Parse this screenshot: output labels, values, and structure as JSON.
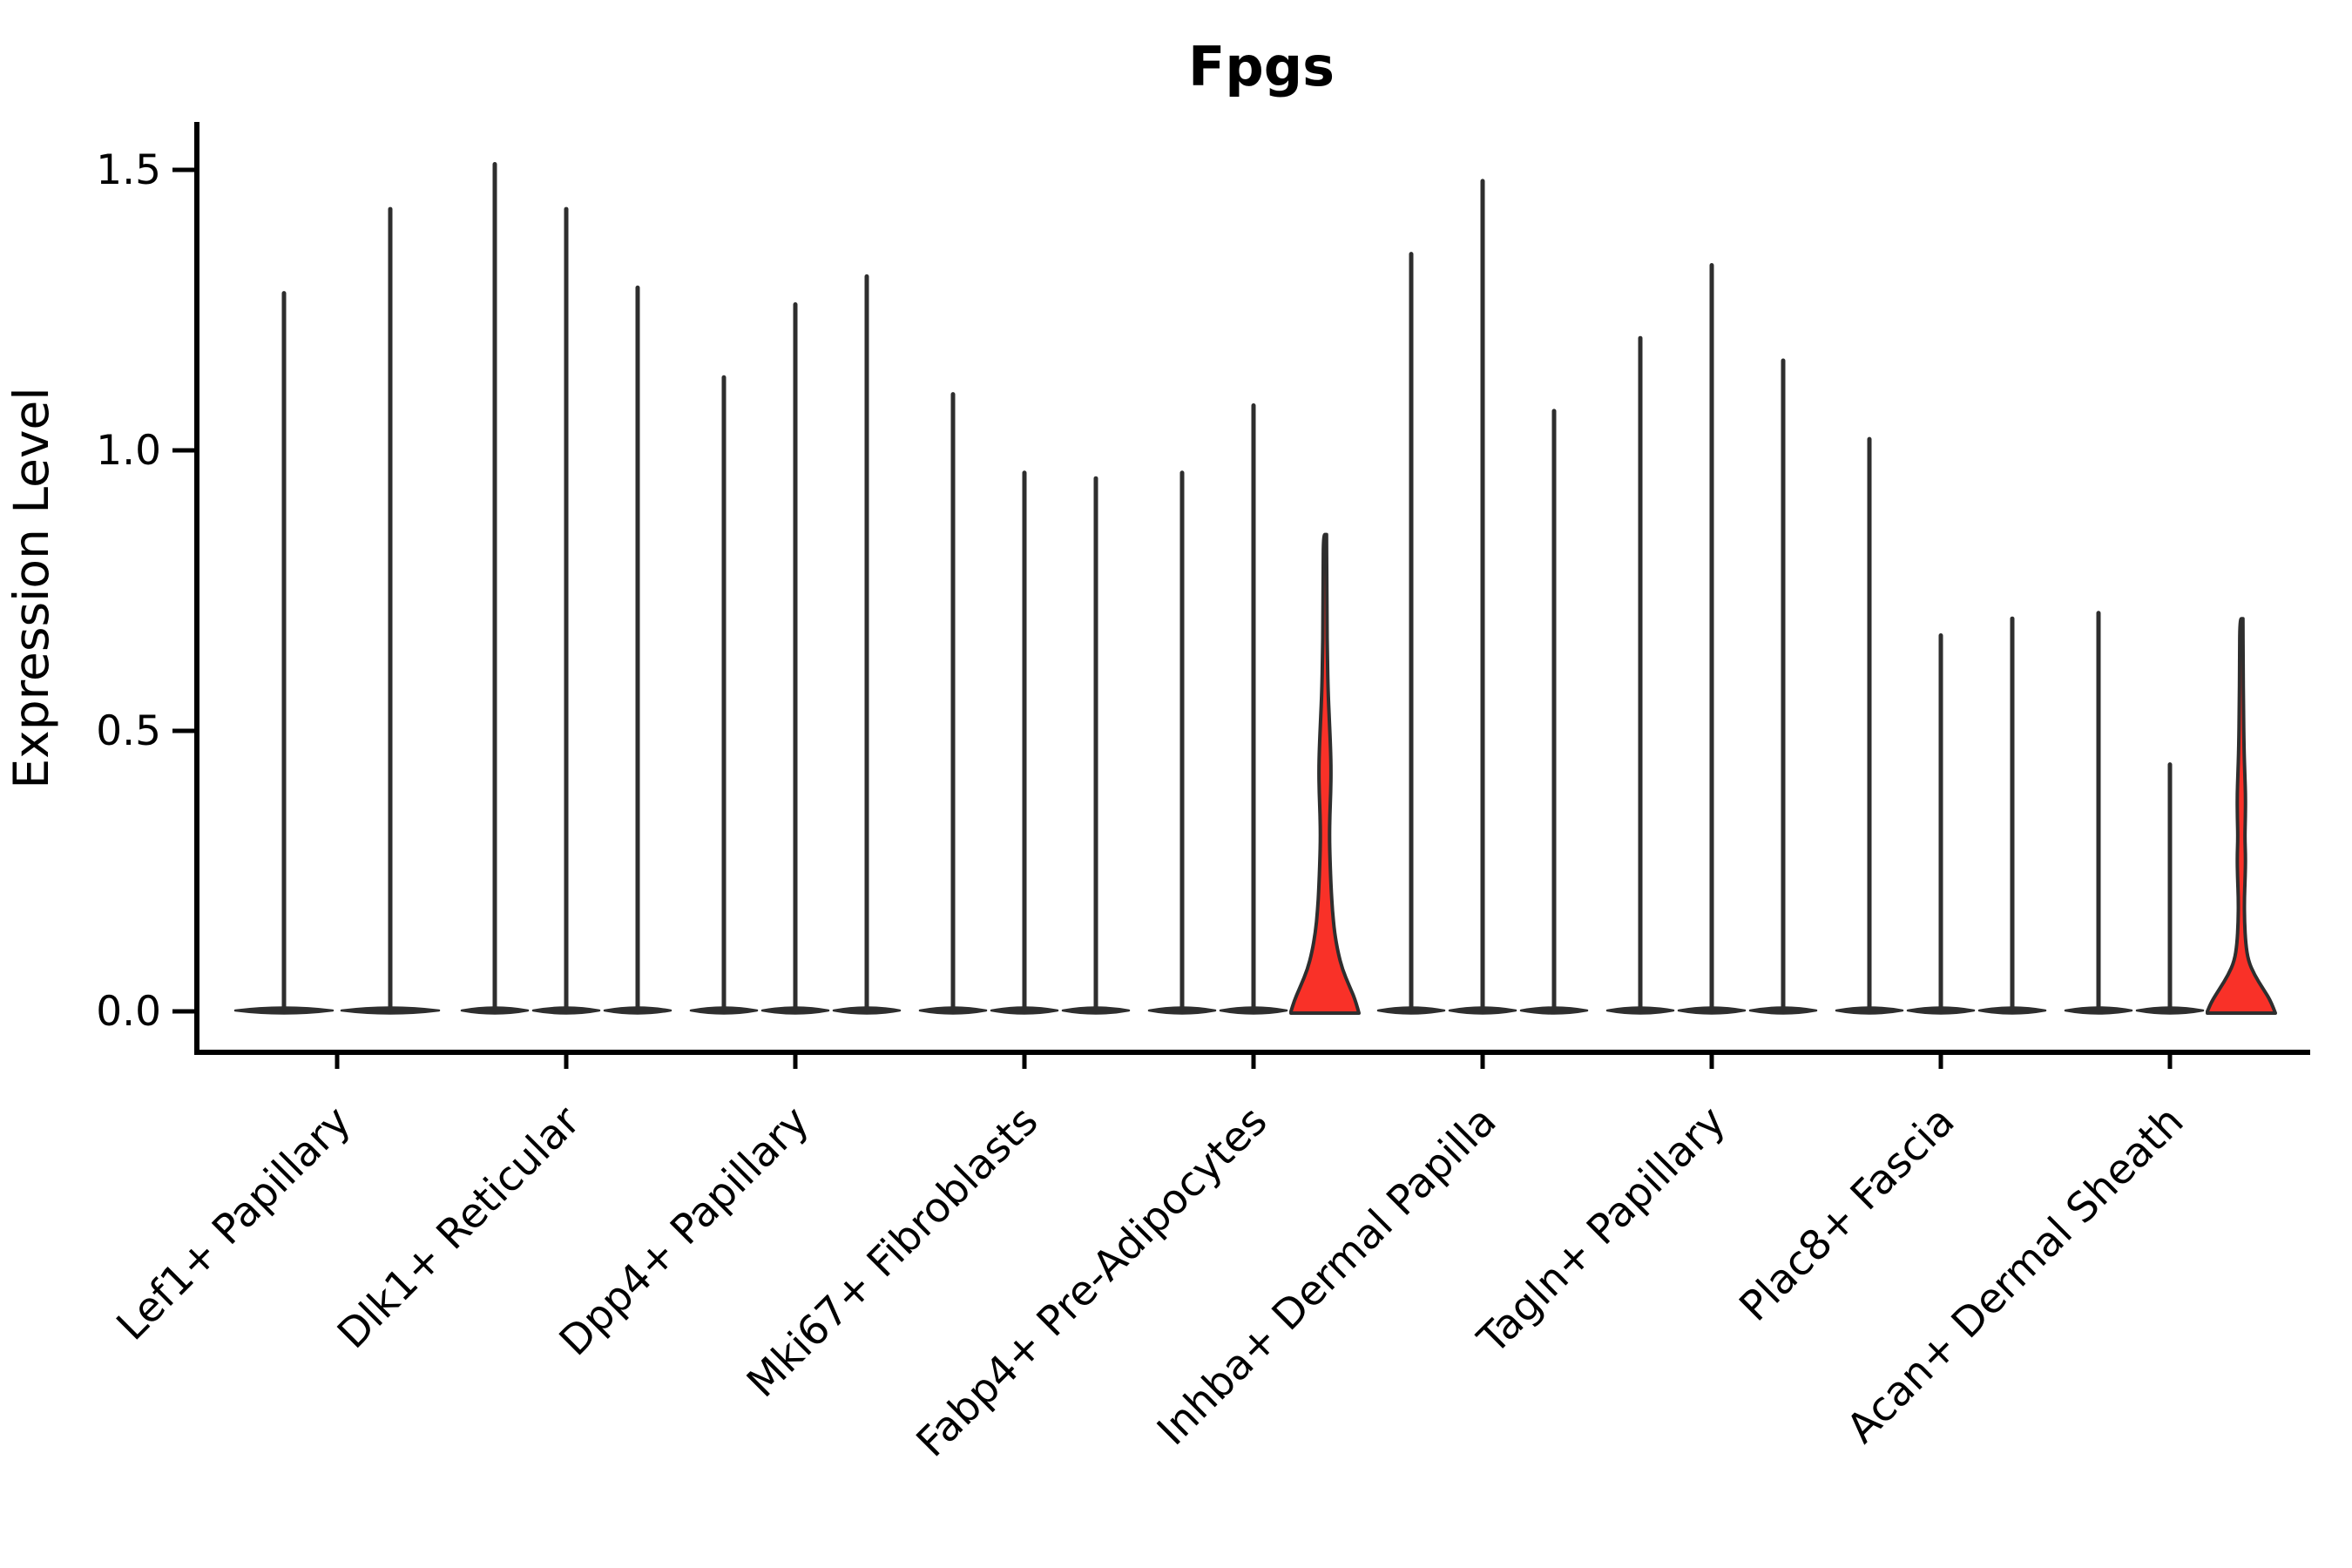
{
  "figure": {
    "title": "Fpgs",
    "ylabel": "Expression Level"
  },
  "chart_data": {
    "type": "violin",
    "title": "Fpgs",
    "xlabel": "",
    "ylabel": "Expression Level",
    "ylim": [
      -0.08,
      1.58
    ],
    "grid": false,
    "legend_position": "none",
    "background": "#ffffff",
    "axis_color": "#000000",
    "line_color": "#2e2e2e",
    "accent_color": "#f93128",
    "yticks": [
      {
        "label": "0.0",
        "value": 0.0
      },
      {
        "label": "0.5",
        "value": 0.5
      },
      {
        "label": "1.0",
        "value": 1.0
      },
      {
        "label": "1.5",
        "value": 1.5
      }
    ],
    "categories": [
      "Lef1+ Papillary",
      "Dlk1+ Reticular",
      "Dpp4+ Papillary",
      "Mki67+ Fibroblasts",
      "Fabp4+ Pre-Adipocytes",
      "Inhba+ Dermal Papilla",
      "Tagln+ Papillary",
      "Plac8+ Fascia",
      "Acan+ Dermal Sheath"
    ],
    "groups": [
      {
        "category": "Lef1+ Papillary",
        "violins": [
          {
            "max": 1.28,
            "filled": false
          },
          {
            "max": 1.43,
            "filled": false
          }
        ]
      },
      {
        "category": "Dlk1+ Reticular",
        "violins": [
          {
            "max": 1.51,
            "filled": false
          },
          {
            "max": 1.43,
            "filled": false
          },
          {
            "max": 1.29,
            "filled": false
          }
        ]
      },
      {
        "category": "Dpp4+ Papillary",
        "violins": [
          {
            "max": 1.13,
            "filled": false
          },
          {
            "max": 1.26,
            "filled": false
          },
          {
            "max": 1.31,
            "filled": false
          }
        ]
      },
      {
        "category": "Mki67+ Fibroblasts",
        "violins": [
          {
            "max": 1.1,
            "filled": false
          },
          {
            "max": 0.96,
            "filled": false
          },
          {
            "max": 0.95,
            "filled": false
          }
        ]
      },
      {
        "category": "Fabp4+ Pre-Adipocytes",
        "violins": [
          {
            "max": 0.96,
            "filled": false
          },
          {
            "max": 1.08,
            "filled": false
          },
          {
            "max": 0.85,
            "filled": true,
            "profile": [
              [
                0,
                39
              ],
              [
                0.02,
                35
              ],
              [
                0.045,
                28
              ],
              [
                0.075,
                20
              ],
              [
                0.105,
                15
              ],
              [
                0.14,
                11
              ],
              [
                0.18,
                8.5
              ],
              [
                0.22,
                7
              ],
              [
                0.27,
                5.8
              ],
              [
                0.31,
                5.2
              ],
              [
                0.35,
                5.6
              ],
              [
                0.39,
                6.6
              ],
              [
                0.43,
                7
              ],
              [
                0.47,
                6.4
              ],
              [
                0.52,
                5
              ],
              [
                0.57,
                3.6
              ],
              [
                0.63,
                2.8
              ],
              [
                0.7,
                2.3
              ],
              [
                0.78,
                2
              ],
              [
                0.85,
                1.8
              ]
            ]
          }
        ]
      },
      {
        "category": "Inhba+ Dermal Papilla",
        "violins": [
          {
            "max": 1.35,
            "filled": false
          },
          {
            "max": 1.48,
            "filled": false
          },
          {
            "max": 1.07,
            "filled": false
          }
        ]
      },
      {
        "category": "Tagln+ Papillary",
        "violins": [
          {
            "max": 1.2,
            "filled": false
          },
          {
            "max": 1.33,
            "filled": false
          },
          {
            "max": 1.16,
            "filled": false
          }
        ]
      },
      {
        "category": "Plac8+ Fascia",
        "violins": [
          {
            "max": 1.02,
            "filled": false
          },
          {
            "max": 0.67,
            "filled": false
          },
          {
            "max": 0.7,
            "filled": false
          }
        ]
      },
      {
        "category": "Acan+ Dermal Sheath",
        "violins": [
          {
            "max": 0.71,
            "filled": false
          },
          {
            "max": 0.44,
            "filled": false
          },
          {
            "max": 0.7,
            "filled": true,
            "profile": [
              [
                0,
                39
              ],
              [
                0.018,
                34
              ],
              [
                0.04,
                25
              ],
              [
                0.065,
                15
              ],
              [
                0.09,
                8
              ],
              [
                0.12,
                5
              ],
              [
                0.16,
                3.6
              ],
              [
                0.2,
                3.4
              ],
              [
                0.24,
                4.4
              ],
              [
                0.275,
                4.8
              ],
              [
                0.31,
                4
              ],
              [
                0.345,
                4.6
              ],
              [
                0.385,
                4.8
              ],
              [
                0.42,
                4
              ],
              [
                0.47,
                3
              ],
              [
                0.54,
                2.4
              ],
              [
                0.62,
                2
              ],
              [
                0.7,
                1.8
              ]
            ]
          }
        ]
      }
    ]
  }
}
